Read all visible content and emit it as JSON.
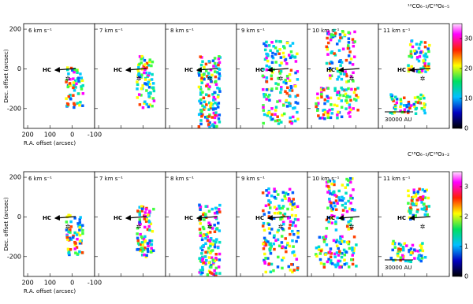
{
  "rows": [
    {
      "title": "¹²CO₆₋₅/C¹⁸O₆₋₅",
      "channels": [
        "6 km s⁻¹",
        "7 km s⁻¹",
        "8 km s⁻¹",
        "9 km s⁻¹",
        "10 km s⁻¹",
        "11 km s⁻¹"
      ],
      "colorbar": {
        "lim": [
          0,
          35
        ],
        "ticks": [
          0,
          10,
          20,
          30
        ]
      }
    },
    {
      "title": "C¹⁸O₆₋₅/C¹⁸O₃₋₂",
      "channels": [
        "6 km s⁻¹",
        "7 km s⁻¹",
        "8 km s⁻¹",
        "9 km s⁻¹",
        "10 km s⁻¹",
        "11 km s⁻¹"
      ],
      "colorbar": {
        "lim": [
          0,
          3.5
        ],
        "ticks": [
          0,
          1,
          2,
          3
        ]
      }
    }
  ],
  "axes": {
    "xlabel": "R.A. offset (arcsec)",
    "ylabel": "Dec. offset (arcsec)",
    "xlim": [
      218,
      -100
    ],
    "ylim": [
      228,
      -300
    ],
    "xticks": [
      200,
      100,
      0,
      -100
    ],
    "yticks": [
      200,
      0,
      -200
    ]
  },
  "hc_label": "HC",
  "scale_bar": "30000 AU"
}
